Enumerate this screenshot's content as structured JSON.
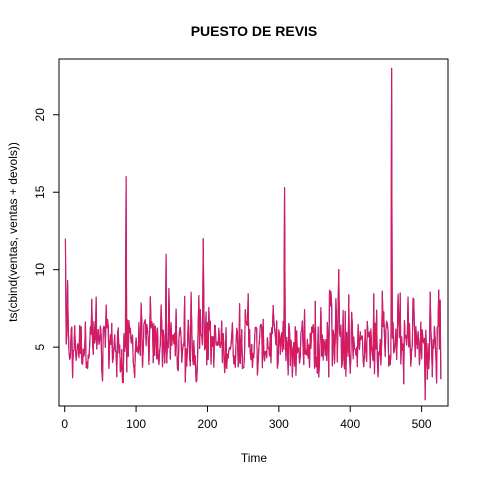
{
  "chart_data": {
    "type": "line",
    "title": "PUESTO DE REVIS",
    "xlabel": "Time",
    "ylabel": "ts(cbind(ventas, ventas + devols))",
    "xlim": [
      -8,
      537
    ],
    "ylim": [
      1.2,
      23.6
    ],
    "xticks": [
      0,
      100,
      200,
      300,
      400,
      500
    ],
    "yticks": [
      5,
      10,
      15,
      20
    ],
    "grid": false,
    "legend": "none",
    "n_points": 527,
    "series": [
      {
        "color": "#0000ff",
        "peaks": [
          [
            1,
            12
          ],
          [
            2,
            5.2
          ],
          [
            4,
            9.3
          ],
          [
            86,
            16
          ],
          [
            142,
            11
          ],
          [
            194,
            12
          ],
          [
            308,
            15.3
          ],
          [
            384,
            10
          ],
          [
            458,
            23
          ],
          [
            505,
            1.6
          ]
        ]
      },
      {
        "color": "#dd1a55",
        "peaks": [
          [
            1,
            12
          ],
          [
            2,
            5.2
          ],
          [
            4,
            9.3
          ],
          [
            86,
            16
          ],
          [
            142,
            11
          ],
          [
            194,
            12
          ],
          [
            308,
            15.3
          ],
          [
            384,
            10
          ],
          [
            458,
            23
          ],
          [
            505,
            1.6
          ]
        ]
      }
    ]
  },
  "colors": {
    "frame": "#000000"
  }
}
